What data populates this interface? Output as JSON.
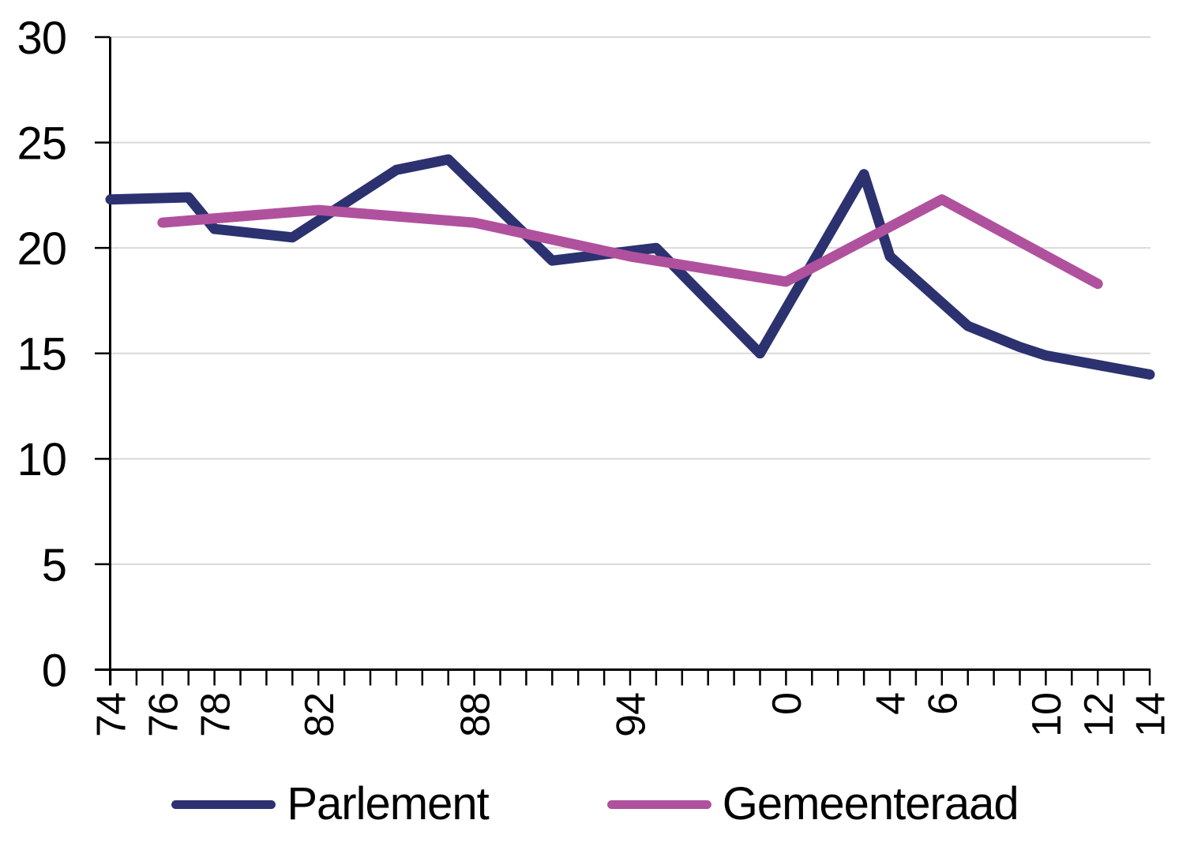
{
  "chart_data": {
    "type": "line",
    "title": "",
    "grid": "horizontal",
    "grid_color": "#d9d9d9",
    "axis_color": "#000000",
    "background_color": "#ffffff",
    "legend_position": "bottom",
    "y_axis": {
      "min": 0,
      "max": 30,
      "tick_step": 5,
      "tick_labels": [
        "0",
        "5",
        "10",
        "15",
        "20",
        "25",
        "30"
      ]
    },
    "x_axis": {
      "start_year": 1974,
      "end_year": 2014,
      "tick_every_years": 1,
      "labels": [
        {
          "year": 1974,
          "text": "74"
        },
        {
          "year": 1976,
          "text": "76"
        },
        {
          "year": 1978,
          "text": "78"
        },
        {
          "year": 1982,
          "text": "82"
        },
        {
          "year": 1988,
          "text": "88"
        },
        {
          "year": 1994,
          "text": "94"
        },
        {
          "year": 2000,
          "text": "0"
        },
        {
          "year": 2004,
          "text": "4"
        },
        {
          "year": 2006,
          "text": "6"
        },
        {
          "year": 2010,
          "text": "10"
        },
        {
          "year": 2012,
          "text": "12"
        },
        {
          "year": 2014,
          "text": "14"
        }
      ]
    },
    "series": [
      {
        "name": "Parlement",
        "color": "#2c3170",
        "points": [
          {
            "year": 1974,
            "value": 22.3
          },
          {
            "year": 1977,
            "value": 22.4
          },
          {
            "year": 1978,
            "value": 20.9
          },
          {
            "year": 1981,
            "value": 20.5
          },
          {
            "year": 1985,
            "value": 23.7
          },
          {
            "year": 1987,
            "value": 24.2
          },
          {
            "year": 1991,
            "value": 19.4
          },
          {
            "year": 1995,
            "value": 20.0
          },
          {
            "year": 1999,
            "value": 15.0
          },
          {
            "year": 2003,
            "value": 23.5
          },
          {
            "year": 2004,
            "value": 19.6
          },
          {
            "year": 2007,
            "value": 16.3
          },
          {
            "year": 2009,
            "value": 15.3
          },
          {
            "year": 2010,
            "value": 14.9
          },
          {
            "year": 2014,
            "value": 14.0
          }
        ]
      },
      {
        "name": "Gemeenteraad",
        "color": "#b0519e",
        "points": [
          {
            "year": 1976,
            "value": 21.2
          },
          {
            "year": 1982,
            "value": 21.8
          },
          {
            "year": 1988,
            "value": 21.2
          },
          {
            "year": 1994,
            "value": 19.6
          },
          {
            "year": 2000,
            "value": 18.4
          },
          {
            "year": 2006,
            "value": 22.3
          },
          {
            "year": 2012,
            "value": 18.3
          }
        ]
      }
    ]
  }
}
